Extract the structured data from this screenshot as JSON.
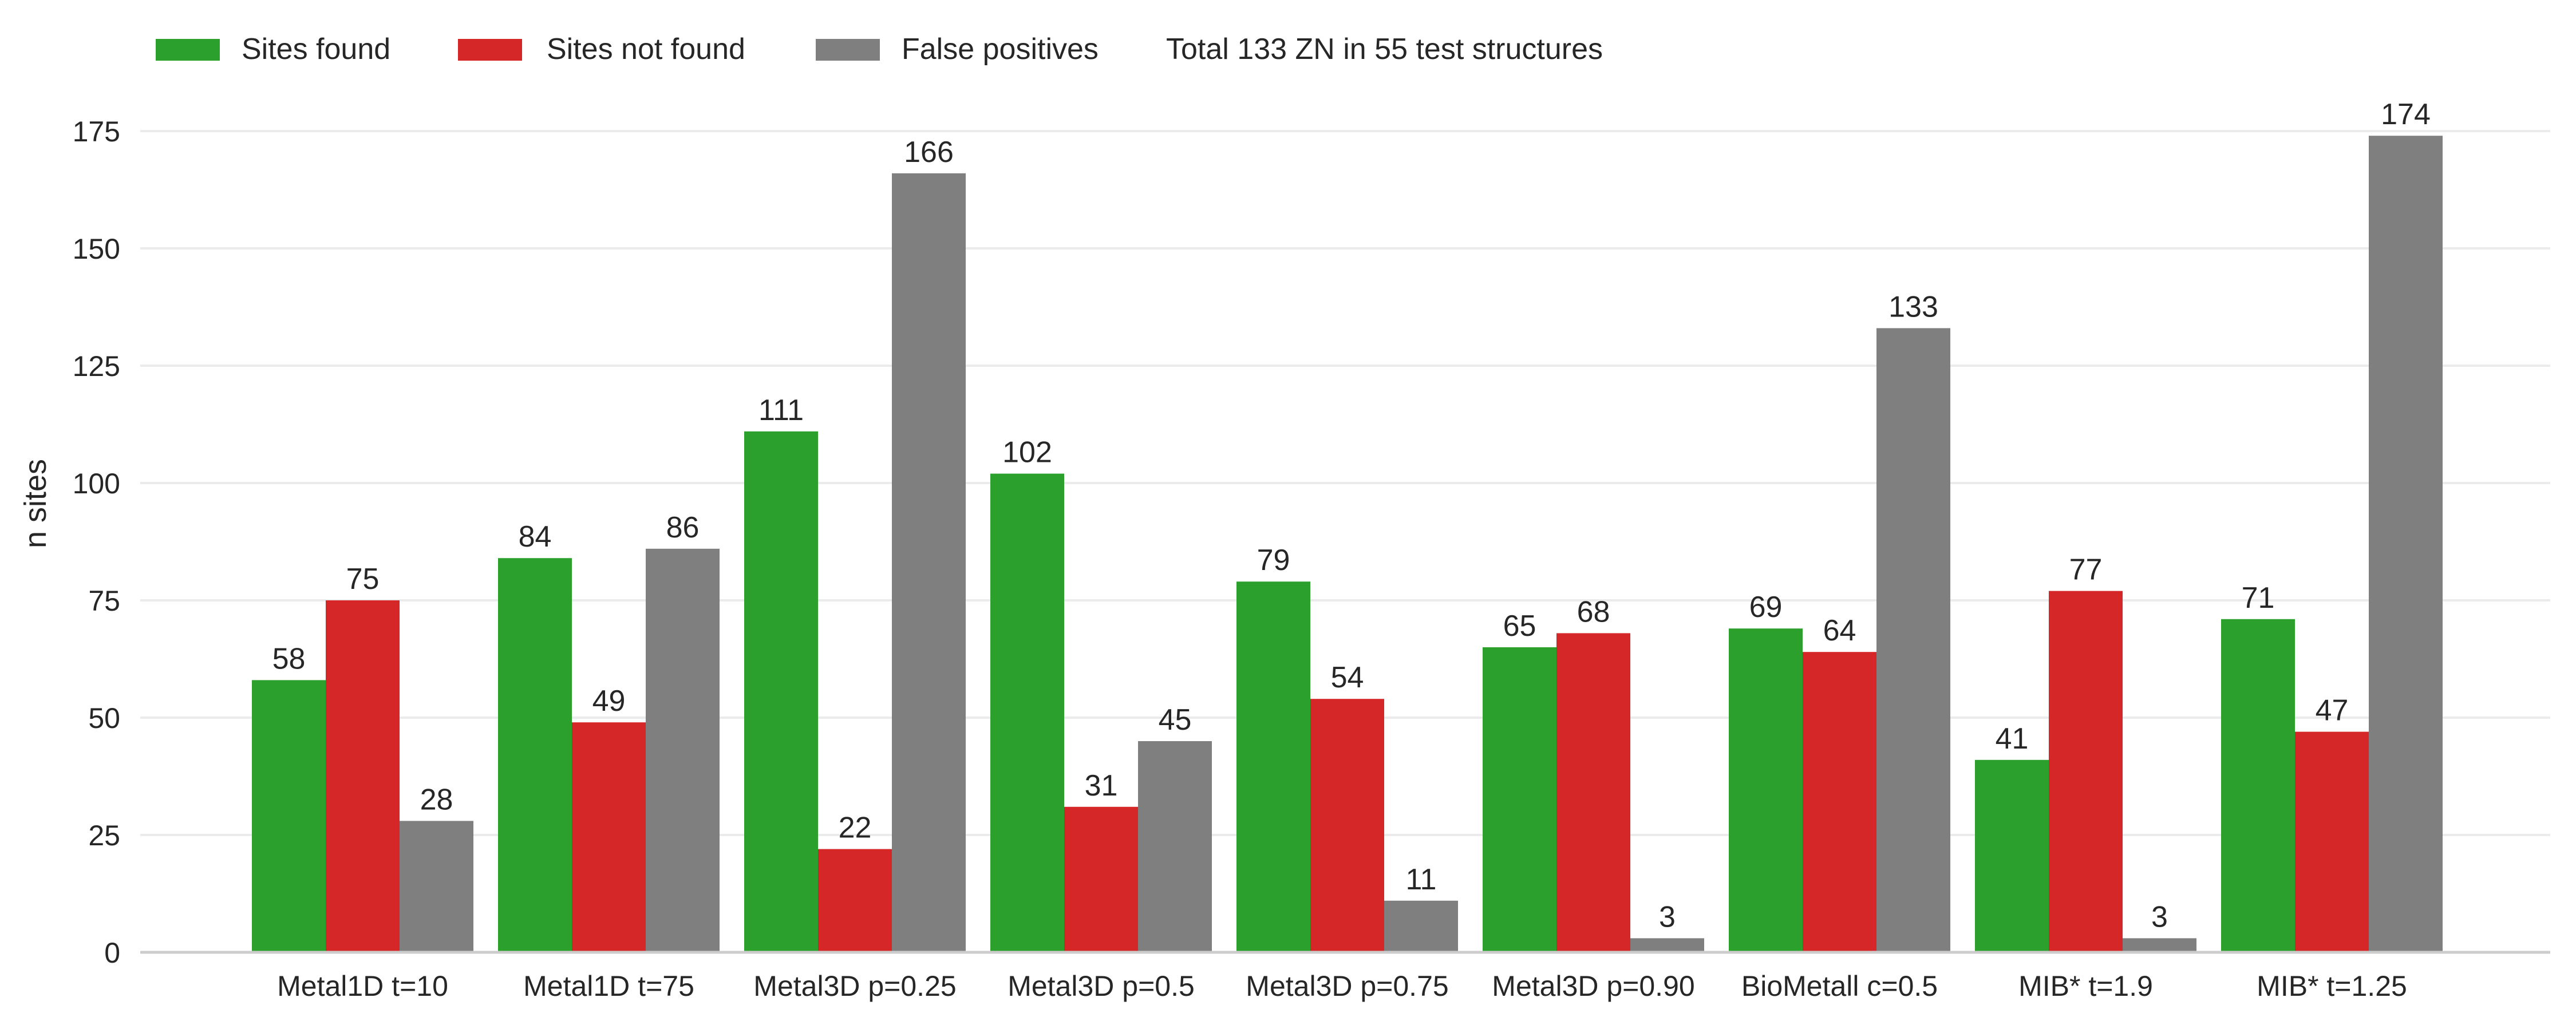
{
  "chart_data": {
    "type": "bar",
    "categories": [
      "Metal1D t=10",
      "Metal1D t=75",
      "Metal3D p=0.25",
      "Metal3D p=0.5",
      "Metal3D p=0.75",
      "Metal3D p=0.90",
      "BioMetall c=0.5",
      "MIB* t=1.9",
      "MIB* t=1.25"
    ],
    "series": [
      {
        "name": "Sites found",
        "color": "#2ca02c",
        "values": [
          58,
          84,
          111,
          102,
          79,
          65,
          69,
          41,
          71
        ]
      },
      {
        "name": "Sites not found",
        "color": "#d62728",
        "values": [
          75,
          49,
          22,
          31,
          54,
          68,
          64,
          77,
          47
        ]
      },
      {
        "name": "False positives",
        "color": "#7f7f7f",
        "values": [
          28,
          86,
          166,
          45,
          11,
          3,
          133,
          3,
          174
        ]
      }
    ],
    "legend_note": "Total 133 ZN in 55 test structures",
    "legend_position": "top-left",
    "title": "",
    "xlabel": "",
    "ylabel": "n sites",
    "ylim": [
      0,
      180
    ],
    "yticks": [
      0,
      25,
      50,
      75,
      100,
      125,
      150,
      175
    ],
    "grid": "horizontal"
  }
}
